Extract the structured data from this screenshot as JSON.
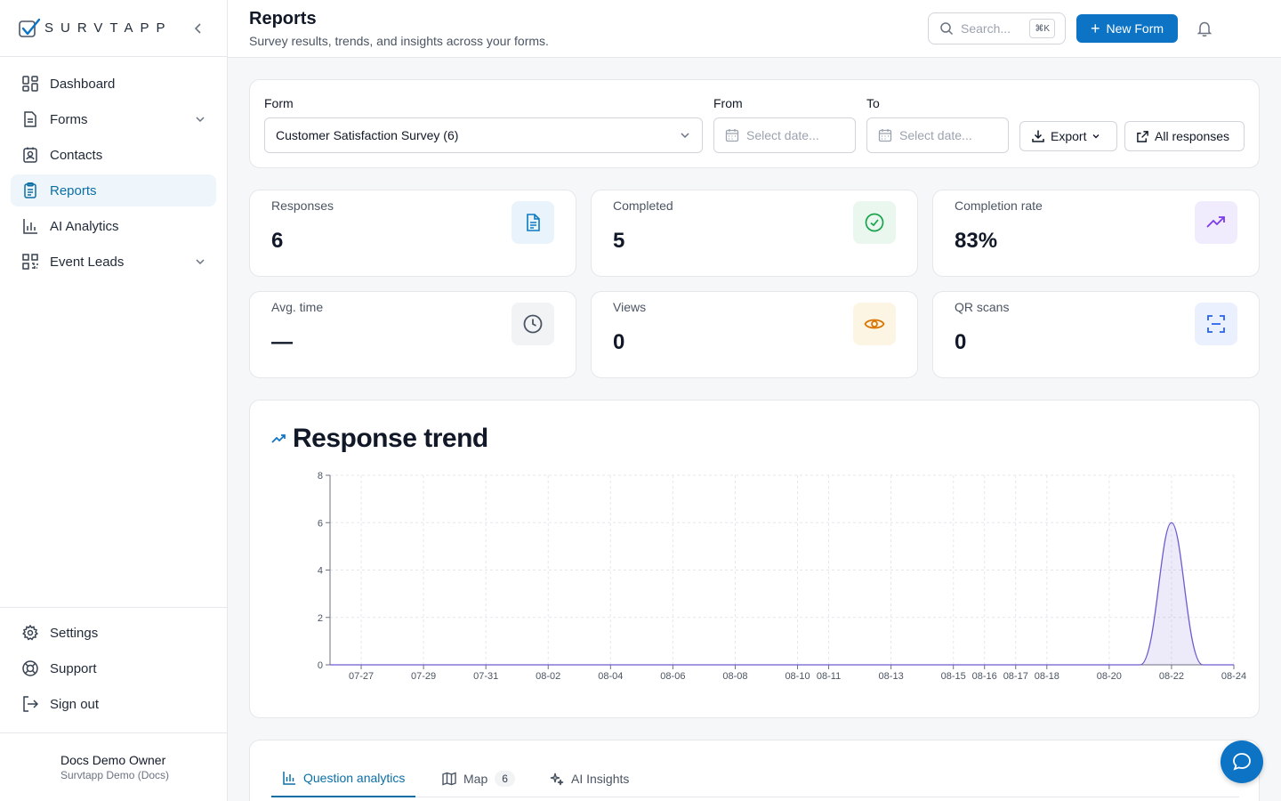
{
  "brand": {
    "name": "SURVTAPP"
  },
  "sidebar": {
    "items": [
      {
        "label": "Dashboard",
        "icon": "dashboard-icon",
        "active": false
      },
      {
        "label": "Forms",
        "icon": "forms-icon",
        "active": false,
        "expandable": true
      },
      {
        "label": "Contacts",
        "icon": "contacts-icon",
        "active": false
      },
      {
        "label": "Reports",
        "icon": "reports-icon",
        "active": true
      },
      {
        "label": "AI Analytics",
        "icon": "bar-chart-icon",
        "active": false
      },
      {
        "label": "Event Leads",
        "icon": "qr-code-icon",
        "active": false,
        "expandable": true
      }
    ],
    "bottom": [
      {
        "label": "Settings",
        "icon": "gear-icon"
      },
      {
        "label": "Support",
        "icon": "lifebuoy-icon"
      },
      {
        "label": "Sign out",
        "icon": "sign-out-icon"
      }
    ],
    "user": {
      "name": "Docs Demo Owner",
      "org": "Survtapp Demo (Docs)"
    }
  },
  "header": {
    "title": "Reports",
    "subtitle": "Survey results, trends, and insights across your forms.",
    "search_placeholder": "Search...",
    "search_shortcut": "⌘K",
    "new_form_label": "New Form"
  },
  "filters": {
    "form_label": "Form",
    "form_value": "Customer Satisfaction Survey (6)",
    "from_label": "From",
    "from_placeholder": "Select date...",
    "to_label": "To",
    "to_placeholder": "Select date...",
    "export_label": "Export",
    "all_responses_label": "All responses"
  },
  "stats": [
    {
      "label": "Responses",
      "value": "6",
      "icon": "document-icon",
      "color": "#0b7bc1",
      "bg": "#e8f3fb"
    },
    {
      "label": "Completed",
      "value": "5",
      "icon": "check-circle-icon",
      "color": "#16a34a",
      "bg": "#e9f7ee"
    },
    {
      "label": "Completion rate",
      "value": "83%",
      "icon": "trending-up-icon",
      "color": "#7c3aed",
      "bg": "#f1ecfd"
    },
    {
      "label": "Avg. time",
      "value": "—",
      "icon": "clock-icon",
      "color": "#4b5563",
      "bg": "#f1f3f5"
    },
    {
      "label": "Views",
      "value": "0",
      "icon": "eye-icon",
      "color": "#d97706",
      "bg": "#fdf5e4"
    },
    {
      "label": "QR scans",
      "value": "0",
      "icon": "scan-icon",
      "color": "#2563eb",
      "bg": "#eaf0fd"
    }
  ],
  "chart": {
    "title": "Response trend"
  },
  "chart_data": {
    "type": "area",
    "title": "Response trend",
    "xlabel": "",
    "ylabel": "",
    "ylim": [
      0,
      8
    ],
    "yticks": [
      0,
      2,
      4,
      6,
      8
    ],
    "x_start": "07-26",
    "x_end": "08-24",
    "tick_labels": [
      "07-27",
      "07-29",
      "07-31",
      "08-02",
      "08-04",
      "08-06",
      "08-08",
      "08-10",
      "08-11",
      "08-13",
      "08-15",
      "08-16",
      "08-17",
      "08-18",
      "08-20",
      "08-22",
      "08-24"
    ],
    "points": [
      {
        "x": "08-21",
        "y": 0
      },
      {
        "x": "08-22",
        "y": 6
      },
      {
        "x": "08-23",
        "y": 0
      }
    ],
    "grid": true,
    "color": "#6d5bd0"
  },
  "tabs": [
    {
      "label": "Question analytics",
      "icon": "bar-chart-icon",
      "active": true
    },
    {
      "label": "Map",
      "icon": "map-icon",
      "badge": "6",
      "active": false
    },
    {
      "label": "AI Insights",
      "icon": "sparkles-icon",
      "active": false
    }
  ]
}
